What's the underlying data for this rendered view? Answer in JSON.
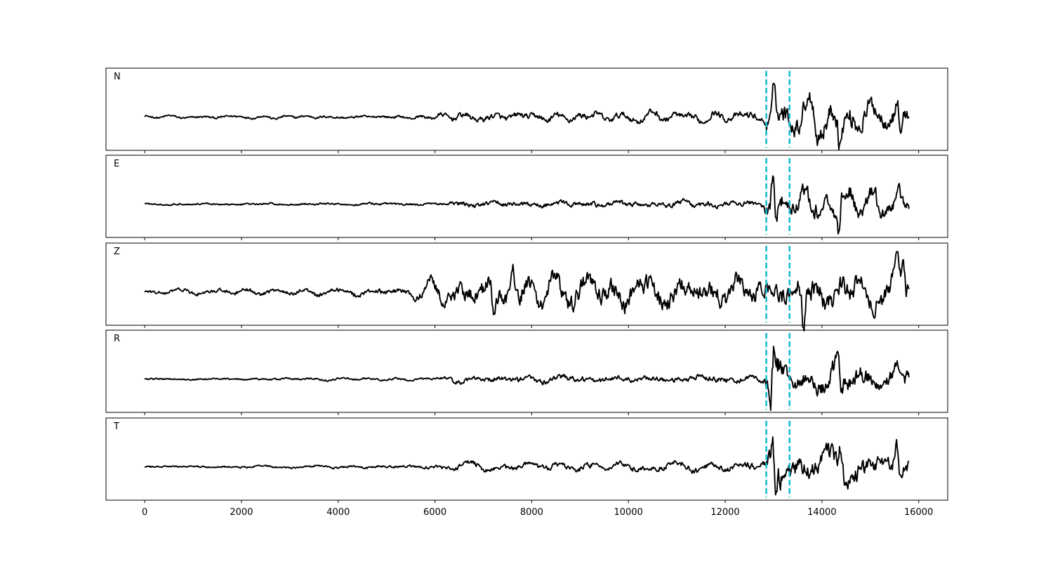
{
  "chart_data": {
    "type": "line",
    "title": "",
    "xlabel": "",
    "ylabel": "",
    "xlim": [
      -800,
      16600
    ],
    "x_ticks": [
      "0",
      "2000",
      "4000",
      "6000",
      "8000",
      "10000",
      "12000",
      "14000",
      "16000"
    ],
    "x_tick_values": [
      0,
      2000,
      4000,
      6000,
      8000,
      10000,
      12000,
      14000,
      16000
    ],
    "trace_x_range": [
      0,
      15800
    ],
    "marker_lines_x": [
      12850,
      13330
    ],
    "colors": {
      "trace": "#000000",
      "marker": "#17becf",
      "frame": "#000000"
    },
    "grid": false,
    "legend": "none",
    "panels": [
      {
        "label": "N",
        "envelope": [
          {
            "x": 0,
            "a": 0.05
          },
          {
            "x": 5500,
            "a": 0.06
          },
          {
            "x": 6500,
            "a": 0.14
          },
          {
            "x": 10500,
            "a": 0.16
          },
          {
            "x": 12800,
            "a": 0.16
          },
          {
            "x": 13000,
            "a": 0.8
          },
          {
            "x": 13300,
            "a": 0.45
          },
          {
            "x": 14400,
            "a": 0.55
          },
          {
            "x": 15800,
            "a": 0.35
          }
        ],
        "peaks": [
          {
            "x": 13030,
            "y": 0.92
          },
          {
            "x": 13090,
            "y": -0.3
          },
          {
            "x": 13900,
            "y": -0.4
          },
          {
            "x": 14370,
            "y": -0.62
          },
          {
            "x": 15560,
            "y": 0.45
          },
          {
            "x": 15620,
            "y": -0.45
          }
        ]
      },
      {
        "label": "E",
        "envelope": [
          {
            "x": 0,
            "a": 0.04
          },
          {
            "x": 6000,
            "a": 0.05
          },
          {
            "x": 6500,
            "a": 0.12
          },
          {
            "x": 12800,
            "a": 0.12
          },
          {
            "x": 12950,
            "a": 0.8
          },
          {
            "x": 13300,
            "a": 0.35
          },
          {
            "x": 14400,
            "a": 0.5
          },
          {
            "x": 15800,
            "a": 0.3
          }
        ],
        "peaks": [
          {
            "x": 12980,
            "y": 0.95
          },
          {
            "x": 13040,
            "y": -0.6
          },
          {
            "x": 14360,
            "y": -0.55
          },
          {
            "x": 14400,
            "y": 0.45
          },
          {
            "x": 15580,
            "y": 0.4
          }
        ]
      },
      {
        "label": "Z",
        "envelope": [
          {
            "x": 0,
            "a": 0.08
          },
          {
            "x": 5500,
            "a": 0.12
          },
          {
            "x": 6000,
            "a": 0.35
          },
          {
            "x": 7500,
            "a": 0.5
          },
          {
            "x": 12800,
            "a": 0.42
          },
          {
            "x": 13300,
            "a": 0.5
          },
          {
            "x": 15800,
            "a": 0.55
          }
        ],
        "peaks": [
          {
            "x": 7220,
            "y": -0.75
          },
          {
            "x": 7620,
            "y": 0.55
          },
          {
            "x": 13620,
            "y": -0.9
          },
          {
            "x": 15560,
            "y": 0.62
          },
          {
            "x": 15680,
            "y": 0.75
          }
        ]
      },
      {
        "label": "R",
        "envelope": [
          {
            "x": 0,
            "a": 0.04
          },
          {
            "x": 6000,
            "a": 0.05
          },
          {
            "x": 6500,
            "a": 0.12
          },
          {
            "x": 12800,
            "a": 0.14
          },
          {
            "x": 12950,
            "a": 0.85
          },
          {
            "x": 13300,
            "a": 0.35
          },
          {
            "x": 14400,
            "a": 0.5
          },
          {
            "x": 15800,
            "a": 0.35
          }
        ],
        "peaks": [
          {
            "x": 12940,
            "y": -0.9
          },
          {
            "x": 13010,
            "y": 0.72
          },
          {
            "x": 14330,
            "y": 0.6
          },
          {
            "x": 14400,
            "y": -0.55
          },
          {
            "x": 15560,
            "y": 0.42
          }
        ]
      },
      {
        "label": "T",
        "envelope": [
          {
            "x": 0,
            "a": 0.04
          },
          {
            "x": 6000,
            "a": 0.06
          },
          {
            "x": 6500,
            "a": 0.12
          },
          {
            "x": 12800,
            "a": 0.16
          },
          {
            "x": 13000,
            "a": 0.8
          },
          {
            "x": 13300,
            "a": 0.45
          },
          {
            "x": 14400,
            "a": 0.5
          },
          {
            "x": 15800,
            "a": 0.3
          }
        ],
        "peaks": [
          {
            "x": 12990,
            "y": 0.75
          },
          {
            "x": 13040,
            "y": -0.92
          },
          {
            "x": 14370,
            "y": 0.55
          },
          {
            "x": 15540,
            "y": 0.6
          },
          {
            "x": 15620,
            "y": -0.3
          }
        ]
      }
    ]
  }
}
